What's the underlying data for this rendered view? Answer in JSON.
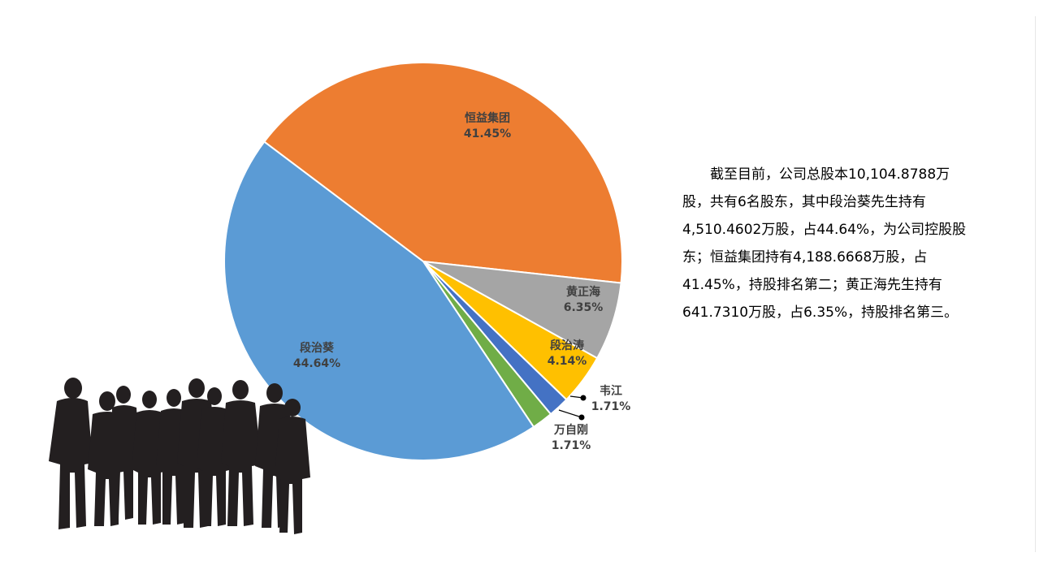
{
  "slide": {
    "description": "截至目前，公司总股本10,104.8788万股，共有6名股东，其中段治葵先生持有4,510.4602万股，占44.64%，为公司控股股东；恒益集团持有4,188.6668万股，占41.45%，持股排名第二；黄正海先生持有641.7310万股，占6.35%，持股排名第三。",
    "decoration": "people-silhouette-icon"
  },
  "chart_data": {
    "type": "pie",
    "start_category": "恒益集团",
    "direction": "clockwise",
    "categories": [
      "恒益集团",
      "黄正海",
      "段治涛",
      "韦江",
      "万自刚",
      "段治葵"
    ],
    "values": [
      41.45,
      6.35,
      4.14,
      1.71,
      1.71,
      44.64
    ],
    "labels": [
      "41.45%",
      "6.35%",
      "4.14%",
      "1.71%",
      "1.71%",
      "44.64%"
    ],
    "colors": [
      "#ED7D31",
      "#A5A5A5",
      "#FFC000",
      "#4472C4",
      "#70AD47",
      "#5B9BD5"
    ],
    "slice_border": "#ffffff",
    "legend": "none"
  }
}
